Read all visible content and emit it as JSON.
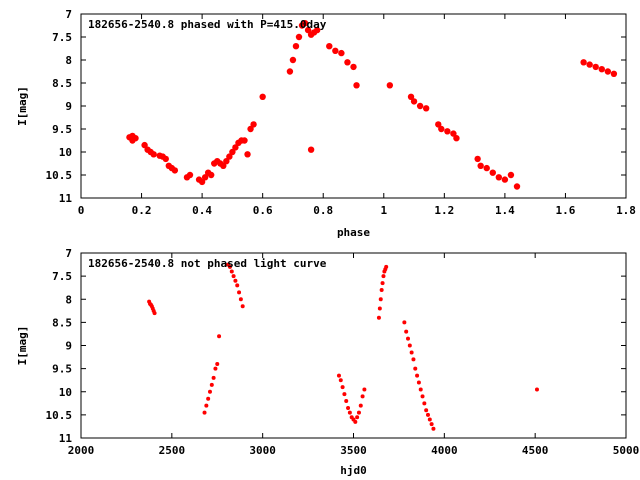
{
  "chart_data": [
    {
      "type": "scatter",
      "title": "182656-2540.8 phased with P=415.0day",
      "xlabel": "phase",
      "ylabel": "I[mag]",
      "xlim": [
        0,
        1.8
      ],
      "ylim": [
        11,
        7
      ],
      "y_inverted": true,
      "xticks": [
        "0",
        "0.2",
        "0.4",
        "0.6",
        "0.8",
        "1",
        "1.2",
        "1.4",
        "1.6",
        "1.8"
      ],
      "yticks": [
        "7",
        "7.5",
        "8",
        "8.5",
        "9",
        "9.5",
        "10",
        "10.5",
        "11"
      ],
      "marker_color": "#ff0000",
      "x": [
        0.16,
        0.17,
        0.18,
        0.17,
        0.21,
        0.22,
        0.23,
        0.24,
        0.26,
        0.27,
        0.28,
        0.29,
        0.3,
        0.31,
        0.35,
        0.36,
        0.39,
        0.4,
        0.41,
        0.42,
        0.43,
        0.44,
        0.45,
        0.46,
        0.47,
        0.48,
        0.49,
        0.5,
        0.51,
        0.52,
        0.53,
        0.54,
        0.55,
        0.56,
        0.57,
        0.6,
        0.69,
        0.7,
        0.71,
        0.72,
        0.73,
        0.74,
        0.75,
        0.76,
        0.77,
        0.78,
        0.76,
        0.82,
        0.84,
        0.86,
        0.88,
        0.9,
        0.91,
        1.02,
        1.09,
        1.1,
        1.12,
        1.14,
        1.18,
        1.19,
        1.21,
        1.23,
        1.24,
        1.31,
        1.32,
        1.34,
        1.36,
        1.38,
        1.4,
        1.42,
        1.44,
        1.66,
        1.68,
        1.7,
        1.72,
        1.74,
        1.76
      ],
      "y": [
        9.68,
        9.65,
        9.7,
        9.75,
        9.85,
        9.95,
        10.0,
        10.05,
        10.08,
        10.1,
        10.15,
        10.3,
        10.35,
        10.4,
        10.55,
        10.5,
        10.6,
        10.65,
        10.55,
        10.45,
        10.5,
        10.25,
        10.2,
        10.25,
        10.3,
        10.2,
        10.1,
        10.0,
        9.9,
        9.8,
        9.75,
        9.75,
        10.05,
        9.5,
        9.4,
        8.8,
        8.25,
        8.0,
        7.7,
        7.5,
        7.25,
        7.2,
        7.35,
        7.45,
        7.4,
        7.35,
        9.95,
        7.7,
        7.8,
        7.85,
        8.05,
        8.15,
        8.55,
        8.55,
        8.8,
        8.9,
        9.0,
        9.05,
        9.4,
        9.5,
        9.55,
        9.6,
        9.7,
        10.15,
        10.3,
        10.35,
        10.45,
        10.55,
        10.6,
        10.5,
        10.75,
        8.05,
        8.1,
        8.15,
        8.2,
        8.25,
        8.3
      ]
    },
    {
      "type": "scatter",
      "title": "182656-2540.8 not phased light curve",
      "xlabel": "hjd0",
      "ylabel": "I[mag]",
      "xlim": [
        2000,
        5000
      ],
      "ylim": [
        11,
        7
      ],
      "y_inverted": true,
      "xticks": [
        "2000",
        "2500",
        "3000",
        "3500",
        "4000",
        "4500",
        "5000"
      ],
      "yticks": [
        "7",
        "7.5",
        "8",
        "8.5",
        "9",
        "9.5",
        "10",
        "10.5",
        "11"
      ],
      "marker_color": "#ff0000",
      "x": [
        2375,
        2380,
        2385,
        2390,
        2395,
        2400,
        2405,
        2680,
        2690,
        2700,
        2710,
        2720,
        2730,
        2740,
        2750,
        2760,
        2810,
        2820,
        2830,
        2840,
        2850,
        2860,
        2870,
        2880,
        2890,
        3420,
        3430,
        3440,
        3450,
        3460,
        3470,
        3480,
        3490,
        3500,
        3510,
        3520,
        3530,
        3540,
        3550,
        3560,
        3640,
        3645,
        3650,
        3655,
        3660,
        3665,
        3670,
        3675,
        3680,
        3780,
        3790,
        3800,
        3810,
        3820,
        3830,
        3840,
        3850,
        3860,
        3870,
        3880,
        3890,
        3900,
        3910,
        3920,
        3930,
        3940,
        4510
      ],
      "y": [
        8.05,
        8.1,
        8.12,
        8.15,
        8.2,
        8.25,
        8.3,
        10.45,
        10.3,
        10.15,
        10.0,
        9.85,
        9.7,
        9.5,
        9.4,
        8.8,
        7.25,
        7.3,
        7.4,
        7.5,
        7.6,
        7.7,
        7.85,
        8.0,
        8.15,
        9.65,
        9.75,
        9.9,
        10.05,
        10.2,
        10.35,
        10.45,
        10.55,
        10.6,
        10.65,
        10.55,
        10.45,
        10.3,
        10.1,
        9.95,
        8.4,
        8.2,
        8.0,
        7.8,
        7.65,
        7.5,
        7.4,
        7.35,
        7.3,
        8.5,
        8.7,
        8.85,
        9.0,
        9.15,
        9.3,
        9.5,
        9.65,
        9.8,
        9.95,
        10.1,
        10.25,
        10.4,
        10.5,
        10.6,
        10.7,
        10.8,
        9.95
      ]
    }
  ]
}
